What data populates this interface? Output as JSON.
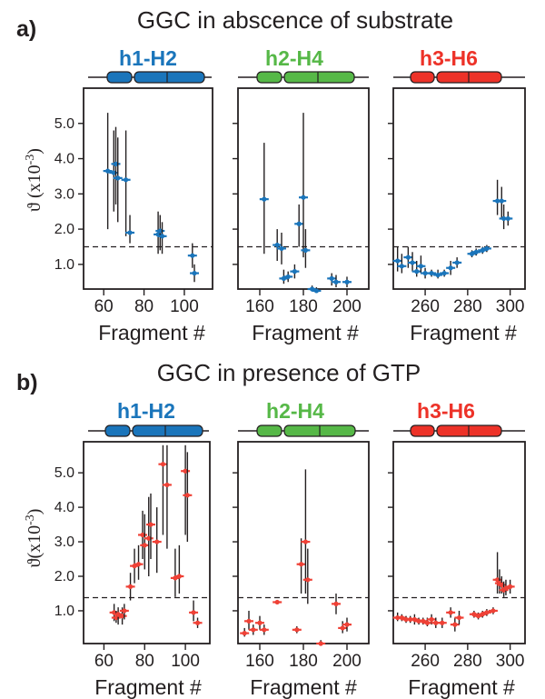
{
  "figure": {
    "rows": [
      {
        "label": "a)",
        "title": "GGC in abscence of substrate",
        "ylabel": "ϑ (x10",
        "ylabel_exp": "-3",
        "ylabel_close": ")",
        "marker_color": "#1a75bb",
        "threshold": 1.5
      },
      {
        "label": "b)",
        "title": "GGC in presence of GTP",
        "ylabel": "ϑ(x10",
        "ylabel_exp": "-3",
        "ylabel_close": ")",
        "marker_color": "#ef4136",
        "threshold": 1.38
      }
    ],
    "domains": [
      {
        "name": "h1-H2",
        "color": "#1a75bb"
      },
      {
        "name": "h2-H4",
        "color": "#56b847"
      },
      {
        "name": "h3-H6",
        "color": "#ed3228"
      }
    ],
    "xlabel": "Fragment #",
    "y_ticks": [
      "1.0",
      "2.0",
      "3.0",
      "4.0",
      "5.0"
    ]
  },
  "chart_data": [
    {
      "type": "scatter",
      "row": "a",
      "domain": "h1-H2",
      "xlim": [
        50,
        114
      ],
      "ylim": [
        0.3,
        6.0
      ],
      "xticks": [
        60,
        80,
        100
      ],
      "xlabel": "Fragment #",
      "ylabel": "ϑ (x10-3)",
      "threshold": 1.5,
      "points": [
        [
          62,
          3.65,
          2.0,
          5.3
        ],
        [
          65,
          3.6,
          2.5,
          4.8
        ],
        [
          66,
          3.85,
          2.7,
          4.9
        ],
        [
          67,
          3.45,
          2.2,
          4.6
        ],
        [
          71,
          3.4,
          1.8,
          4.8
        ],
        [
          73,
          1.9,
          1.6,
          2.4
        ],
        [
          87,
          1.85,
          1.3,
          2.5
        ],
        [
          88,
          1.95,
          1.4,
          2.4
        ],
        [
          89,
          1.8,
          1.3,
          2.2
        ],
        [
          104,
          1.25,
          0.9,
          1.6
        ],
        [
          105,
          0.75,
          0.5,
          1.0
        ]
      ]
    },
    {
      "type": "scatter",
      "row": "a",
      "domain": "h2-H4",
      "xlim": [
        150,
        210
      ],
      "ylim": [
        0.3,
        6.0
      ],
      "xticks": [
        160,
        180,
        200
      ],
      "xlabel": "Fragment #",
      "ylabel": "ϑ (x10-3)",
      "threshold": 1.5,
      "points": [
        [
          162,
          2.85,
          1.3,
          4.45
        ],
        [
          168,
          1.55,
          1.1,
          2.0
        ],
        [
          170,
          1.45,
          1.0,
          1.9
        ],
        [
          171,
          0.6,
          0.45,
          0.85
        ],
        [
          173,
          0.65,
          0.5,
          0.8
        ],
        [
          176,
          0.8,
          0.6,
          1.0
        ],
        [
          178,
          2.15,
          1.5,
          2.7
        ],
        [
          180,
          2.9,
          1.2,
          5.3
        ],
        [
          181,
          1.4,
          0.9,
          2.0
        ],
        [
          184,
          0.3,
          0.25,
          0.4
        ],
        [
          186,
          0.25,
          0.2,
          0.35
        ],
        [
          193,
          0.6,
          0.4,
          0.75
        ],
        [
          195,
          0.5,
          0.35,
          0.7
        ],
        [
          200,
          0.5,
          0.35,
          0.65
        ]
      ]
    },
    {
      "type": "scatter",
      "row": "a",
      "domain": "h3-H6",
      "xlim": [
        245,
        307
      ],
      "ylim": [
        0.3,
        6.0
      ],
      "xticks": [
        260,
        280,
        300
      ],
      "xlabel": "Fragment #",
      "ylabel": "ϑ (x10-3)",
      "threshold": 1.5,
      "points": [
        [
          247,
          1.1,
          0.8,
          1.5
        ],
        [
          249,
          0.95,
          0.75,
          1.3
        ],
        [
          252,
          1.2,
          0.9,
          1.5
        ],
        [
          254,
          1.05,
          0.8,
          1.35
        ],
        [
          256,
          0.8,
          0.65,
          1.1
        ],
        [
          258,
          0.95,
          0.75,
          1.25
        ],
        [
          260,
          0.75,
          0.6,
          0.9
        ],
        [
          263,
          0.75,
          0.65,
          0.85
        ],
        [
          266,
          0.7,
          0.6,
          0.85
        ],
        [
          269,
          0.75,
          0.65,
          0.85
        ],
        [
          272,
          0.9,
          0.7,
          1.1
        ],
        [
          275,
          1.05,
          0.9,
          1.2
        ],
        [
          282,
          1.3,
          1.2,
          1.4
        ],
        [
          284,
          1.35,
          1.25,
          1.45
        ],
        [
          287,
          1.4,
          1.3,
          1.5
        ],
        [
          289,
          1.45,
          1.35,
          1.55
        ],
        [
          294,
          2.8,
          2.4,
          3.4
        ],
        [
          296,
          2.8,
          2.3,
          3.2
        ],
        [
          297,
          2.3,
          2.0,
          2.7
        ],
        [
          299,
          2.3,
          2.1,
          2.5
        ]
      ]
    },
    {
      "type": "scatter",
      "row": "b",
      "domain": "h1-H2",
      "xlim": [
        50,
        112
      ],
      "ylim": [
        0.05,
        5.9
      ],
      "xticks": [
        60,
        80,
        100
      ],
      "xlabel": "Fragment #",
      "ylabel": "ϑ(x10-3)",
      "threshold": 1.38,
      "points": [
        [
          65,
          0.95,
          0.7,
          1.2
        ],
        [
          66,
          0.8,
          0.65,
          1.0
        ],
        [
          67,
          0.9,
          0.6,
          1.1
        ],
        [
          69,
          0.85,
          0.6,
          1.1
        ],
        [
          70,
          1.0,
          0.75,
          1.2
        ],
        [
          73,
          1.7,
          1.3,
          2.1
        ],
        [
          75,
          2.3,
          1.8,
          2.8
        ],
        [
          77,
          2.35,
          1.9,
          2.9
        ],
        [
          79,
          3.2,
          2.5,
          3.9
        ],
        [
          80,
          2.9,
          2.2,
          3.8
        ],
        [
          82,
          3.1,
          2.0,
          4.3
        ],
        [
          83,
          3.5,
          2.5,
          4.4
        ],
        [
          86,
          3.0,
          2.1,
          4.0
        ],
        [
          89,
          5.25,
          3.2,
          5.8
        ],
        [
          91,
          4.65,
          2.8,
          5.8
        ],
        [
          95,
          1.95,
          1.4,
          2.8
        ],
        [
          97,
          2.0,
          1.5,
          2.9
        ],
        [
          100,
          5.05,
          3.2,
          5.8
        ],
        [
          101,
          4.35,
          3.0,
          5.6
        ],
        [
          104,
          0.95,
          0.7,
          1.3
        ],
        [
          106,
          0.65,
          0.5,
          0.8
        ]
      ]
    },
    {
      "type": "scatter",
      "row": "b",
      "domain": "h2-H4",
      "xlim": [
        150,
        210
      ],
      "ylim": [
        0.05,
        5.9
      ],
      "xticks": [
        160,
        180,
        200
      ],
      "xlabel": "Fragment #",
      "ylabel": "ϑ(x10-3)",
      "threshold": 1.38,
      "points": [
        [
          153,
          0.35,
          0.25,
          0.5
        ],
        [
          155,
          0.7,
          0.45,
          1.0
        ],
        [
          157,
          0.45,
          0.3,
          0.6
        ],
        [
          160,
          0.65,
          0.45,
          0.85
        ],
        [
          162,
          0.45,
          0.3,
          0.6
        ],
        [
          168,
          1.25,
          1.2,
          1.3
        ],
        [
          177,
          0.45,
          0.35,
          0.55
        ],
        [
          179,
          2.35,
          1.5,
          3.1
        ],
        [
          181,
          3.0,
          1.5,
          5.1
        ],
        [
          182,
          1.9,
          1.2,
          2.8
        ],
        [
          188,
          0.05,
          0.0,
          0.15
        ],
        [
          195,
          1.2,
          0.9,
          1.5
        ],
        [
          198,
          0.5,
          0.35,
          0.7
        ],
        [
          200,
          0.6,
          0.4,
          0.8
        ]
      ]
    },
    {
      "type": "scatter",
      "row": "b",
      "domain": "h3-H6",
      "xlim": [
        245,
        307
      ],
      "ylim": [
        0.05,
        5.9
      ],
      "xticks": [
        260,
        280,
        300
      ],
      "xlabel": "Fragment #",
      "ylabel": "ϑ(x10-3)",
      "threshold": 1.38,
      "points": [
        [
          247,
          0.8,
          0.7,
          0.95
        ],
        [
          249,
          0.8,
          0.7,
          0.9
        ],
        [
          251,
          0.75,
          0.65,
          0.85
        ],
        [
          253,
          0.75,
          0.65,
          0.85
        ],
        [
          255,
          0.75,
          0.6,
          0.9
        ],
        [
          257,
          0.7,
          0.6,
          0.8
        ],
        [
          259,
          0.7,
          0.6,
          0.8
        ],
        [
          261,
          0.65,
          0.55,
          0.8
        ],
        [
          263,
          0.75,
          0.6,
          0.9
        ],
        [
          265,
          0.65,
          0.5,
          0.8
        ],
        [
          268,
          0.65,
          0.5,
          0.8
        ],
        [
          272,
          0.95,
          0.8,
          1.1
        ],
        [
          274,
          0.6,
          0.4,
          0.8
        ],
        [
          276,
          0.8,
          0.6,
          1.0
        ],
        [
          283,
          0.9,
          0.8,
          1.0
        ],
        [
          285,
          0.85,
          0.75,
          0.95
        ],
        [
          287,
          0.9,
          0.8,
          1.0
        ],
        [
          289,
          0.95,
          0.85,
          1.05
        ],
        [
          292,
          1.0,
          0.9,
          1.1
        ],
        [
          294,
          1.9,
          1.5,
          2.7
        ],
        [
          295,
          1.8,
          1.5,
          2.2
        ],
        [
          296,
          1.75,
          1.5,
          2.0
        ],
        [
          297,
          1.6,
          1.4,
          1.85
        ],
        [
          298,
          1.65,
          1.45,
          1.9
        ],
        [
          300,
          1.7,
          1.5,
          1.9
        ]
      ]
    }
  ]
}
